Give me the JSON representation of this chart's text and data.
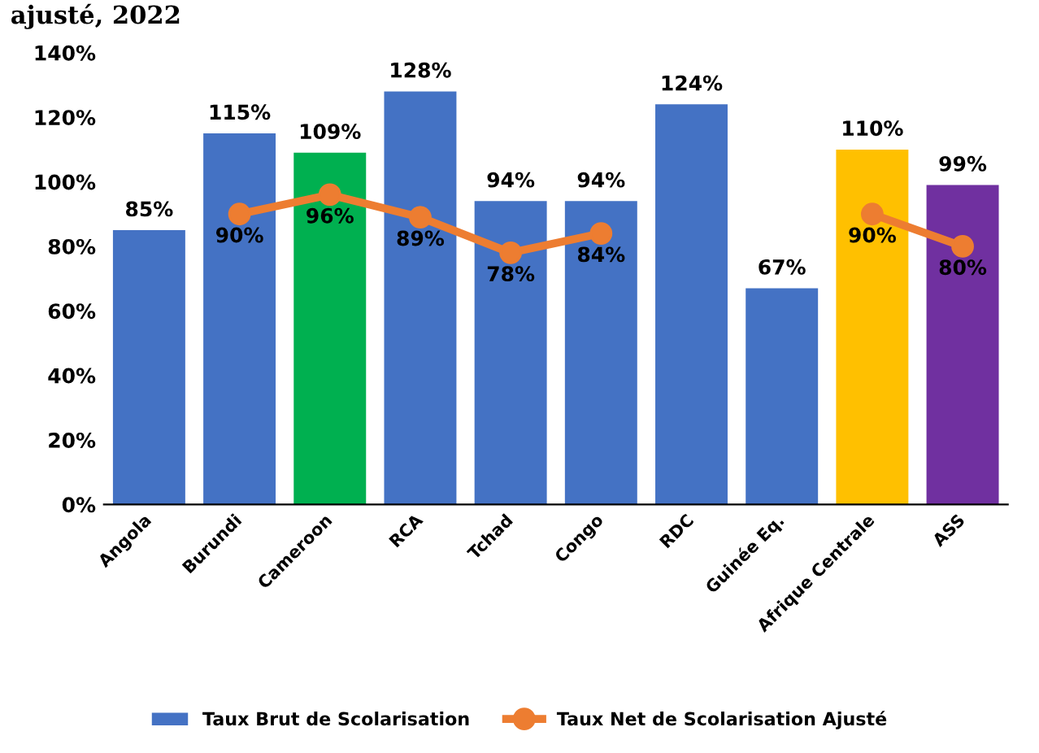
{
  "chart_data": {
    "type": "bar",
    "title": "ajusté, 2022",
    "categories": [
      "Angola",
      "Burundi",
      "Cameroon",
      "RCA",
      "Tchad",
      "Congo",
      "RDC",
      "Guinée Eq.",
      "Afrique Centrale",
      "ASS"
    ],
    "series": [
      {
        "name": "Taux Brut de Scolarisation",
        "type": "bar",
        "color": "#4472c4",
        "colors": [
          "#4472c4",
          "#4472c4",
          "#00b050",
          "#4472c4",
          "#4472c4",
          "#4472c4",
          "#4472c4",
          "#4472c4",
          "#ffc000",
          "#7030a0"
        ],
        "values": [
          85,
          115,
          109,
          128,
          94,
          94,
          124,
          67,
          110,
          99
        ],
        "value_labels": [
          "85%",
          "115%",
          "109%",
          "128%",
          "94%",
          "94%",
          "124%",
          "67%",
          "110%",
          "99%"
        ]
      },
      {
        "name": "Taux Net de Scolarisation Ajusté",
        "type": "line",
        "color": "#ed7d31",
        "marker": "circle",
        "values": [
          null,
          90,
          96,
          89,
          78,
          84,
          null,
          null,
          90,
          80
        ],
        "value_labels": [
          null,
          "90%",
          "96%",
          "89%",
          "78%",
          "84%",
          null,
          null,
          "90%",
          "80%"
        ]
      }
    ],
    "ylim": [
      0,
      140
    ],
    "yticks": [
      {
        "value": 0,
        "label": "0%"
      },
      {
        "value": 20,
        "label": "20%"
      },
      {
        "value": 40,
        "label": "40%"
      },
      {
        "value": 60,
        "label": "60%"
      },
      {
        "value": 80,
        "label": "80%"
      },
      {
        "value": 100,
        "label": "100%"
      },
      {
        "value": 120,
        "label": "120%"
      },
      {
        "value": 140,
        "label": "140%"
      }
    ],
    "grid": false,
    "legend": "bottom"
  }
}
